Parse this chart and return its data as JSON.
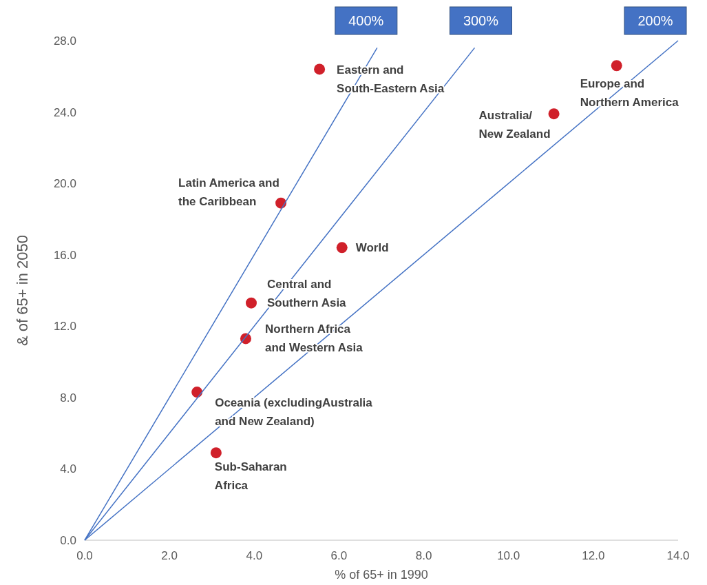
{
  "chart_data": {
    "type": "scatter",
    "xlabel": "% of 65+ in 1990",
    "ylabel": "& of 65+ in 2050",
    "xlim": [
      0,
      14
    ],
    "ylim": [
      0,
      28
    ],
    "xticks": [
      {
        "value": 0,
        "label": "0.0"
      },
      {
        "value": 2,
        "label": "2.0"
      },
      {
        "value": 4,
        "label": "4.0"
      },
      {
        "value": 6,
        "label": "6.0"
      },
      {
        "value": 8,
        "label": "8.0"
      },
      {
        "value": 10,
        "label": "10.0"
      },
      {
        "value": 12,
        "label": "12.0"
      },
      {
        "value": 14,
        "label": "14.0"
      }
    ],
    "yticks": [
      {
        "value": 0,
        "label": "0.0"
      },
      {
        "value": 4,
        "label": "4.0"
      },
      {
        "value": 8,
        "label": "8.0"
      },
      {
        "value": 12,
        "label": "12.0"
      },
      {
        "value": 16,
        "label": "16.0"
      },
      {
        "value": 20,
        "label": "20.0"
      },
      {
        "value": 24,
        "label": "24.0"
      },
      {
        "value": 28,
        "label": "28.0"
      }
    ],
    "grid": false,
    "series": [
      {
        "marker": "circle",
        "color": "#d0202a",
        "x": [
          5.54,
          12.55,
          11.07,
          4.63,
          6.07,
          3.93,
          3.8,
          2.65,
          3.1
        ],
        "values": [
          26.4,
          26.6,
          23.9,
          18.9,
          16.4,
          13.3,
          11.3,
          8.3,
          4.9
        ]
      },
      {
        "type": "line",
        "name": "400%",
        "color": "#4472c4",
        "x": [
          0,
          6.9
        ],
        "values": [
          0,
          27.6
        ]
      },
      {
        "type": "line",
        "name": "300%",
        "color": "#4472c4",
        "x": [
          0,
          9.2
        ],
        "values": [
          0,
          27.6
        ]
      },
      {
        "type": "line",
        "name": "200%",
        "color": "#4472c4",
        "x": [
          0,
          14
        ],
        "values": [
          0,
          28
        ]
      }
    ],
    "annotations": [
      {
        "text": "Eastern and\nSouth-Eastern Asia",
        "x": 5.54,
        "y": 26.4
      },
      {
        "text": "Europe and\nNorthern America",
        "x": 12.55,
        "y": 26.6
      },
      {
        "text": "Australia/\nNew Zealand",
        "x": 11.07,
        "y": 23.9
      },
      {
        "text": "Latin America and\nthe Caribbean",
        "x": 4.63,
        "y": 18.9
      },
      {
        "text": "World",
        "x": 6.07,
        "y": 16.4
      },
      {
        "text": "Central and\nSouthern Asia",
        "x": 3.93,
        "y": 13.3
      },
      {
        "text": "Northern Africa\nand Western Asia",
        "x": 3.8,
        "y": 11.3
      },
      {
        "text": "Oceania (excludingAustralia\nand New Zealand)",
        "x": 2.65,
        "y": 8.3
      },
      {
        "text": "Sub-Saharan\nAfrica",
        "x": 3.1,
        "y": 4.9
      }
    ]
  }
}
